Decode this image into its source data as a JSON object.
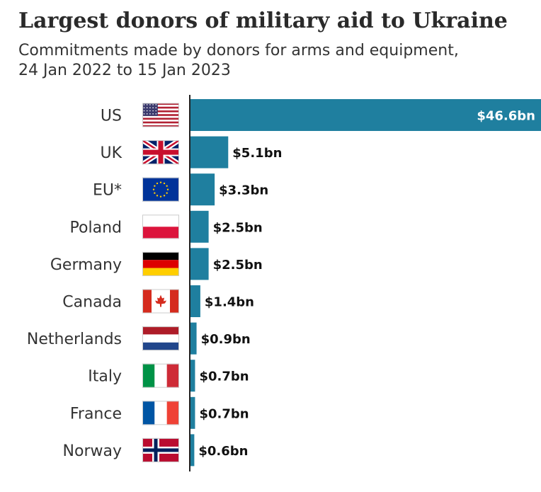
{
  "header": {
    "title": "Largest donors of military aid to Ukraine",
    "subtitle_line1": "Commitments made by donors for arms and equipment,",
    "subtitle_line2": "24 Jan 2022 to 15 Jan 2023"
  },
  "colors": {
    "bar": "#1f7f9f",
    "axis": "#222222"
  },
  "chart_data": {
    "type": "bar",
    "orientation": "horizontal",
    "categories": [
      "US",
      "UK",
      "EU*",
      "Poland",
      "Germany",
      "Canada",
      "Netherlands",
      "Italy",
      "France",
      "Norway"
    ],
    "values": [
      46.6,
      5.1,
      3.3,
      2.5,
      2.5,
      1.4,
      0.9,
      0.7,
      0.7,
      0.6
    ],
    "value_labels": [
      "$46.6bn",
      "$5.1bn",
      "$3.3bn",
      "$2.5bn",
      "$2.5bn",
      "$1.4bn",
      "$0.9bn",
      "$0.7bn",
      "$0.7bn",
      "$0.6bn"
    ],
    "flag_icons": [
      "us-flag-icon",
      "uk-flag-icon",
      "eu-flag-icon",
      "poland-flag-icon",
      "germany-flag-icon",
      "canada-flag-icon",
      "netherlands-flag-icon",
      "italy-flag-icon",
      "france-flag-icon",
      "norway-flag-icon"
    ],
    "xlim": [
      0,
      46.6
    ],
    "grid": false,
    "legend": "none"
  }
}
